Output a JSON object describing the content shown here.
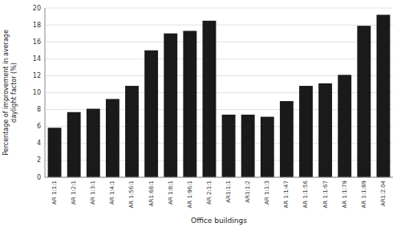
{
  "chart_data": {
    "type": "bar",
    "categories": [
      "AR 1:1:1",
      "AR 1:2:1",
      "AR 1:3:1",
      "AR 1:4:1",
      "AR 1:56:1",
      "AR1:68:1",
      "AR 1:8:1",
      "AR 1:96:1",
      "AR 2:1:1",
      "AR1:1:1",
      "AR1:1:2",
      "AR 1:1:3",
      "AR 1:1:47",
      "AR 1:1:56",
      "AR 1:1:67",
      "AR 1:1:79",
      "AR 1:1:89",
      "AR1:2.04"
    ],
    "values": [
      5.85,
      7.7,
      8.1,
      9.25,
      10.8,
      15.0,
      17.0,
      17.3,
      18.5,
      7.4,
      7.4,
      7.15,
      9.0,
      10.8,
      11.1,
      12.1,
      17.9,
      19.2
    ],
    "color": "#1a1a1a",
    "xlabel": "Office buildings",
    "ylabel": "Percentage of improvement in average\ndaylight factor (%)",
    "ylim": [
      0,
      20
    ],
    "yticks": [
      0,
      2,
      4,
      6,
      8,
      10,
      12,
      14,
      16,
      18,
      20
    ],
    "grid": true
  }
}
